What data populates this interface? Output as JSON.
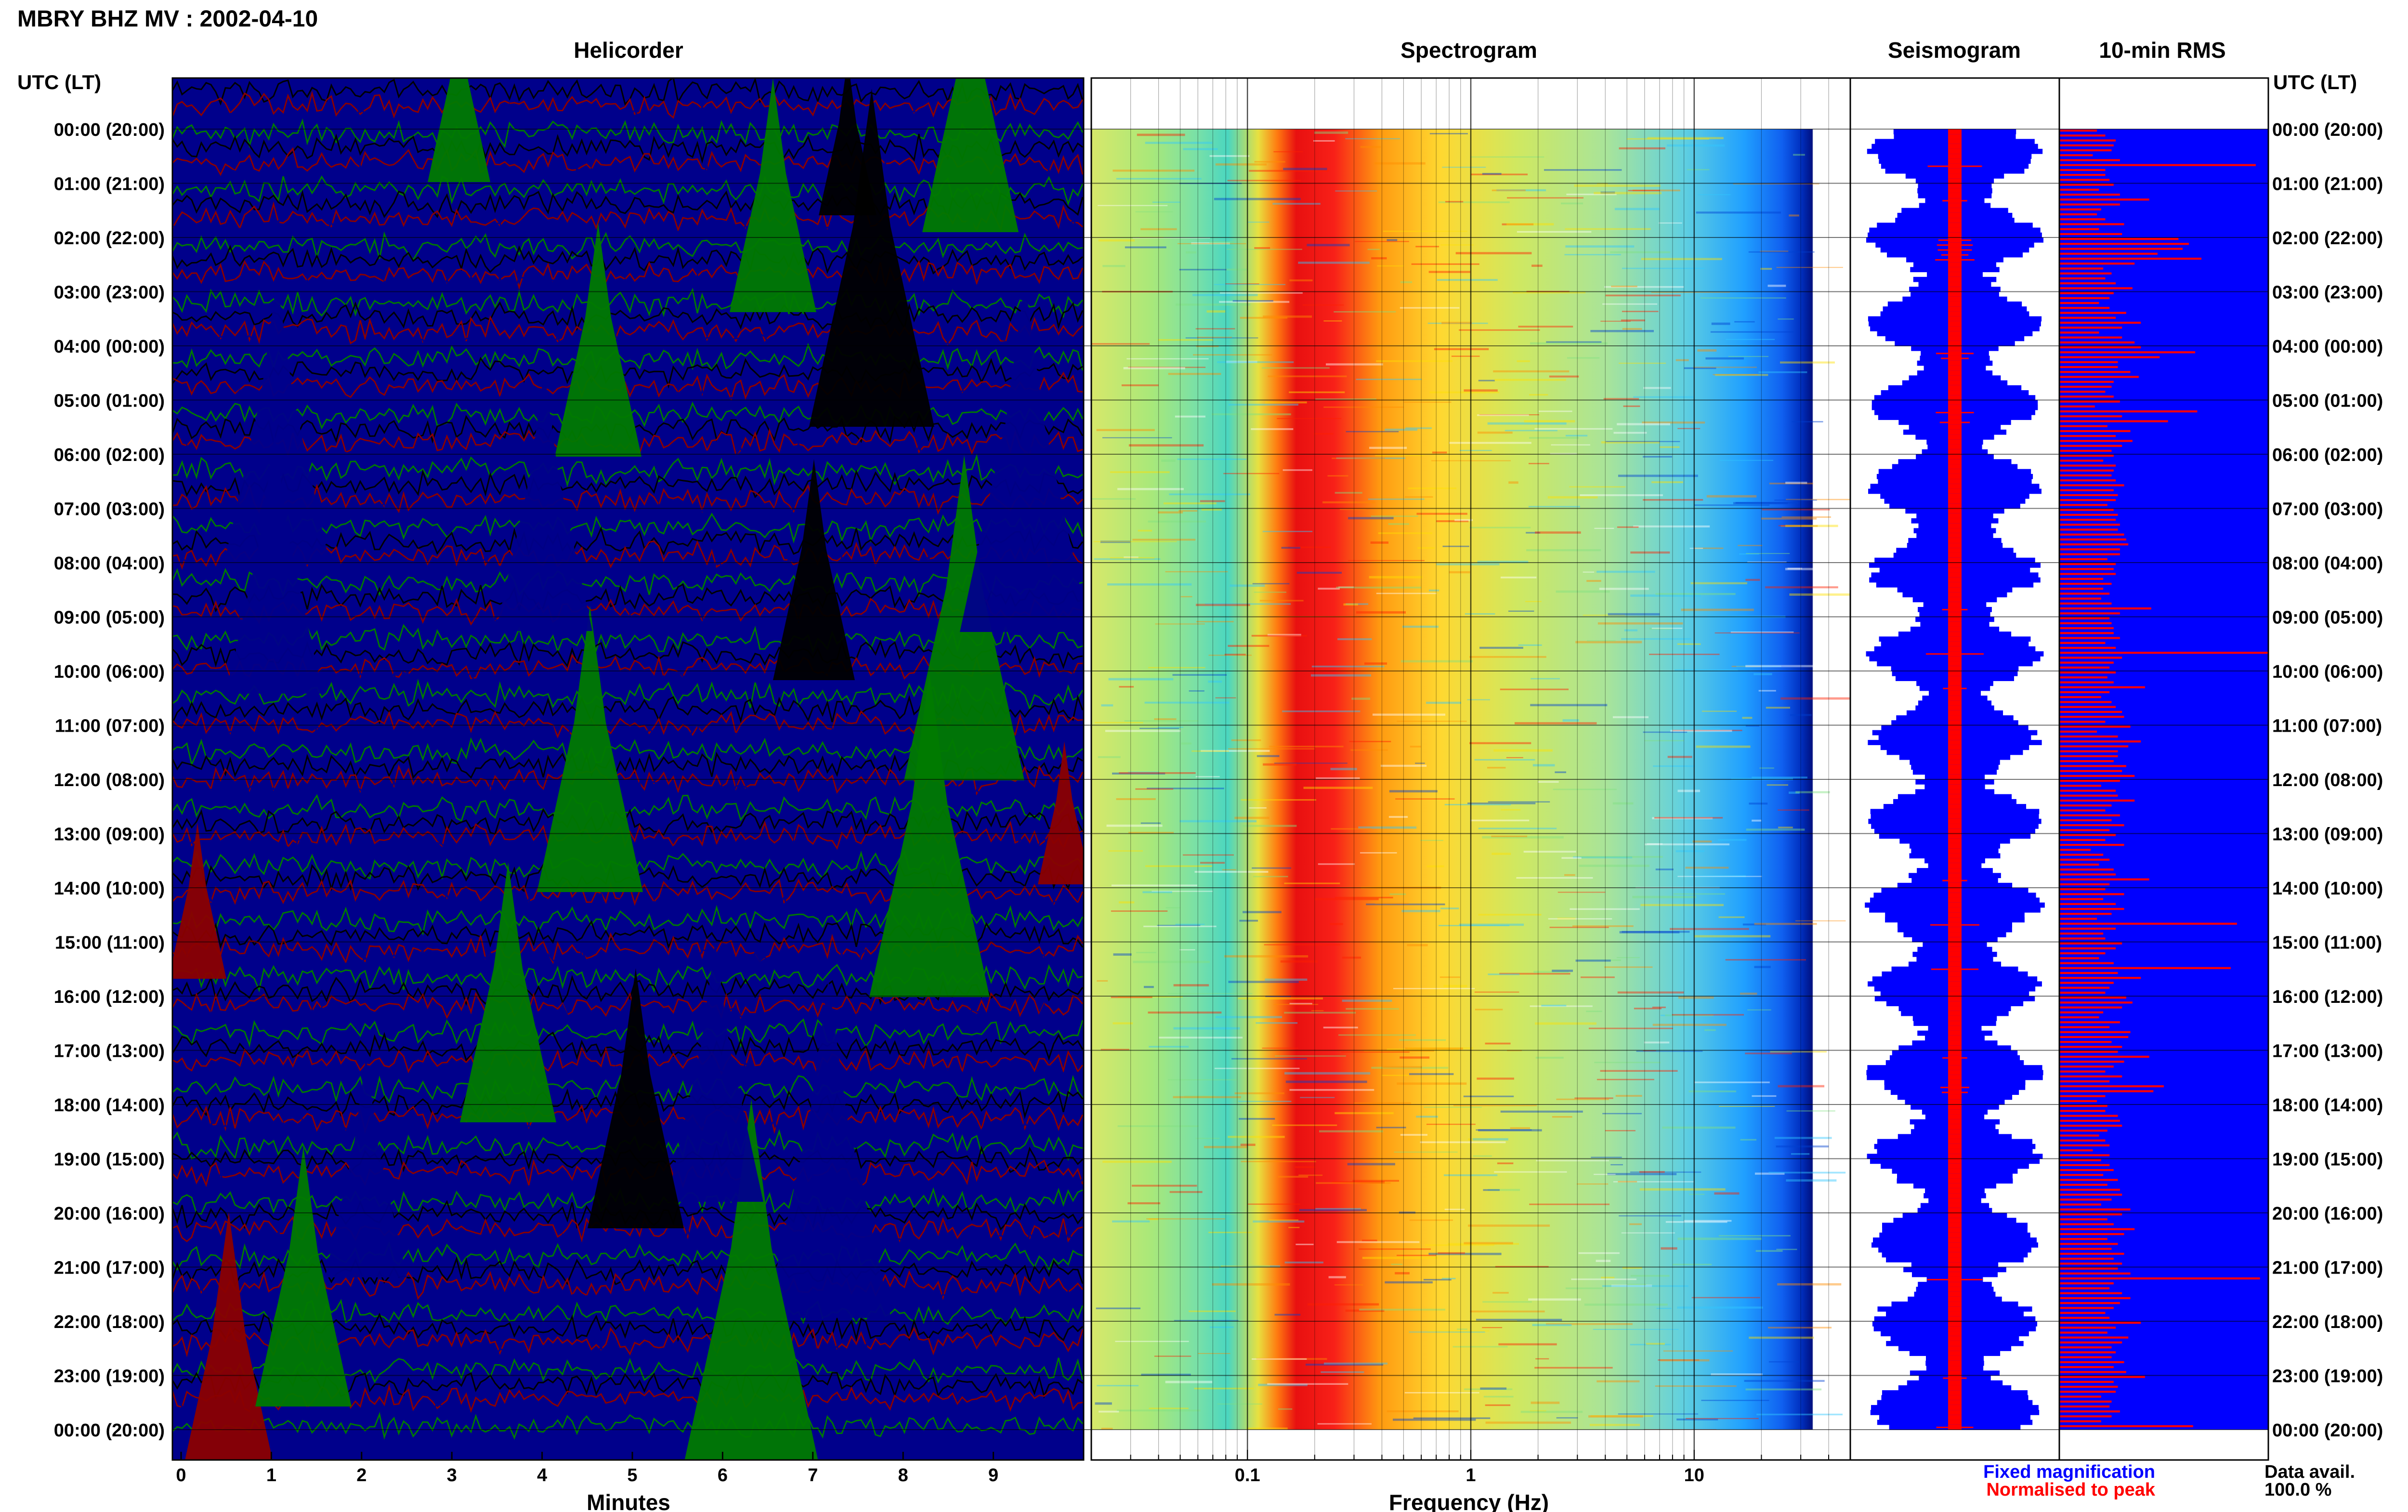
{
  "header": {
    "title": "MBRY BHZ MV : 2002-04-10",
    "utc_label": "UTC (LT)"
  },
  "panels": {
    "helicorder": "Helicorder",
    "spectrogram": "Spectrogram",
    "seismogram": "Seismogram",
    "rms": "10-min RMS"
  },
  "axes": {
    "helicorder_xlabel": "Minutes",
    "spectrogram_xlabel": "Frequency (Hz)"
  },
  "legend": {
    "fixed": "Fixed magnification",
    "normalised": "Normalised to peak",
    "data_avail_label": "Data avail.",
    "data_avail_value": "100.0 %"
  },
  "colors": {
    "black": "#000000",
    "red": "#8b0000",
    "green": "#007a00",
    "blue": "#00008b",
    "seis_blue": "#0000ff",
    "seis_red": "#ff0000",
    "legend_blue": "#0000ff",
    "legend_red": "#ff0000"
  },
  "chart_data": {
    "type": "heatmap",
    "time_labels": [
      "00:00 (20:00)",
      "01:00 (21:00)",
      "02:00 (22:00)",
      "03:00 (23:00)",
      "04:00 (00:00)",
      "05:00 (01:00)",
      "06:00 (02:00)",
      "07:00 (03:00)",
      "08:00 (04:00)",
      "09:00 (05:00)",
      "10:00 (06:00)",
      "11:00 (07:00)",
      "12:00 (08:00)",
      "13:00 (09:00)",
      "14:00 (10:00)",
      "15:00 (11:00)",
      "16:00 (12:00)",
      "17:00 (13:00)",
      "18:00 (14:00)",
      "19:00 (15:00)",
      "20:00 (16:00)",
      "21:00 (17:00)",
      "22:00 (18:00)",
      "23:00 (19:00)",
      "00:00 (20:00)"
    ],
    "helicorder": {
      "x_ticks": [
        "0",
        "1",
        "2",
        "3",
        "4",
        "5",
        "6",
        "7",
        "8",
        "9"
      ],
      "xlim": [
        0,
        10
      ],
      "trace_colors": [
        "black",
        "red",
        "blue",
        "green"
      ]
    },
    "spectrogram": {
      "x_ticks": [
        "0.1",
        "1",
        "10"
      ],
      "xscale": "log",
      "xlim": [
        0.02,
        50
      ]
    },
    "rms_10min": [
      0.18,
      0.22,
      0.27,
      0.26,
      0.25,
      0.16,
      0.29,
      0.94,
      0.22,
      0.22,
      0.24,
      0.26,
      0.19,
      0.29,
      0.43,
      0.29,
      0.2,
      0.18,
      0.22,
      0.31,
      0.19,
      0.3,
      0.57,
      0.62,
      0.59,
      0.47,
      0.68,
      0.36,
      0.21,
      0.25,
      0.22,
      0.27,
      0.35,
      0.26,
      0.24,
      0.19,
      0.24,
      0.32,
      0.27,
      0.39,
      0.3,
      0.19,
      0.3,
      0.36,
      0.39,
      0.65,
      0.48,
      0.28,
      0.28,
      0.34,
      0.38,
      0.26,
      0.25,
      0.22,
      0.26,
      0.29,
      0.17,
      0.66,
      0.3,
      0.52,
      0.23,
      0.34,
      0.27,
      0.35,
      0.3,
      0.25,
      0.26,
      0.21,
      0.27,
      0.26,
      0.25,
      0.27,
      0.31,
      0.26,
      0.28,
      0.27,
      0.23,
      0.26,
      0.28,
      0.27,
      0.29,
      0.28,
      0.31,
      0.32,
      0.33,
      0.29,
      0.29,
      0.23,
      0.27,
      0.26,
      0.27,
      0.21,
      0.25,
      0.21,
      0.24,
      0.2,
      0.25,
      0.44,
      0.29,
      0.24,
      0.25,
      0.26,
      0.26,
      0.29,
      0.22,
      0.27,
      1.0,
      0.3,
      0.26,
      0.24,
      0.27,
      0.23,
      0.26,
      0.41,
      0.24,
      0.2,
      0.25,
      0.27,
      0.3,
      0.31,
      0.22,
      0.34,
      0.18,
      0.28,
      0.39,
      0.33,
      0.28,
      0.28,
      0.26,
      0.32,
      0.3,
      0.36,
      0.29,
      0.2,
      0.27,
      0.28,
      0.36,
      0.25,
      0.22,
      0.29,
      0.25,
      0.31,
      0.24,
      0.27,
      0.22,
      0.31,
      0.15,
      0.21,
      0.24,
      0.19,
      0.26,
      0.27,
      0.43,
      0.24,
      0.22,
      0.31,
      0.21,
      0.27,
      0.31,
      0.25,
      0.18,
      0.85,
      0.27,
      0.21,
      0.22,
      0.3,
      0.27,
      0.22,
      0.19,
      0.26,
      0.82,
      0.28,
      0.39,
      0.26,
      0.24,
      0.22,
      0.32,
      0.35,
      0.3,
      0.21,
      0.19,
      0.29,
      0.24,
      0.34,
      0.33,
      0.25,
      0.3,
      0.28,
      0.43,
      0.31,
      0.26,
      0.22,
      0.3,
      0.24,
      0.5,
      0.45,
      0.22,
      0.18,
      0.23,
      0.22,
      0.28,
      0.29,
      0.3,
      0.23,
      0.19,
      0.22,
      0.24,
      0.16,
      0.24,
      0.2,
      0.24,
      0.26,
      0.21,
      0.28,
      0.23,
      0.29,
      0.3,
      0.25,
      0.2,
      0.34,
      0.3,
      0.23,
      0.26,
      0.36,
      0.31,
      0.23,
      0.28,
      0.25,
      0.31,
      0.26,
      0.3,
      0.28,
      0.34,
      0.96,
      0.26,
      0.24,
      0.3,
      0.34,
      0.29,
      0.26,
      0.22,
      0.24,
      0.39,
      0.27,
      0.23,
      0.33,
      0.3,
      0.25,
      0.27,
      0.25,
      0.31,
      0.26,
      0.32,
      0.41,
      0.26,
      0.28,
      0.27,
      0.2,
      0.25,
      0.24,
      0.29,
      0.25,
      0.2,
      0.64
    ]
  }
}
